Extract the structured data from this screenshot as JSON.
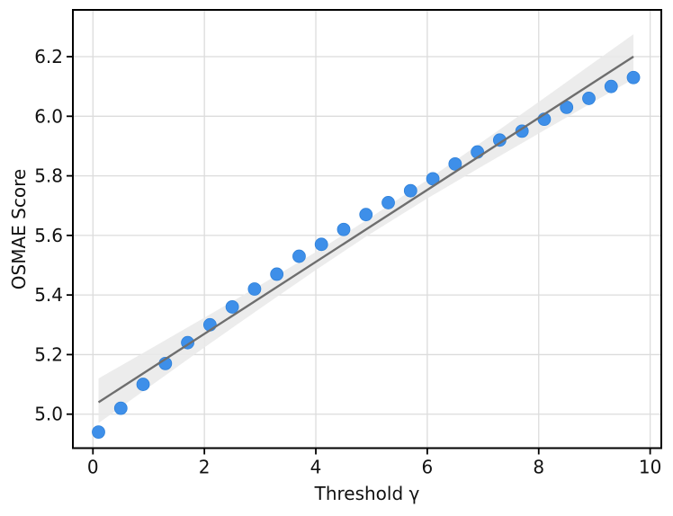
{
  "figure": {
    "background": "#FFFFFF"
  },
  "chart_data": {
    "type": "scatter",
    "title": "",
    "xlabel": "Threshold γ",
    "ylabel": "OSMAE Score",
    "xlim": [
      -0.36,
      10.2
    ],
    "ylim": [
      4.886,
      6.357
    ],
    "xticks": [
      0,
      2,
      4,
      6,
      8,
      10
    ],
    "yticks": [
      5.0,
      5.2,
      5.4,
      5.6,
      5.8,
      6.0,
      6.2
    ],
    "grid": true,
    "legend": "none",
    "colors": {
      "point": "#3E8FE9",
      "point_edge": "#2E80D9",
      "trend_line": "#6E6E6E",
      "band": "#E9E9E9",
      "grid": "#DCDCDC",
      "spine": "#000000",
      "text": "#111111"
    },
    "series": [
      {
        "name": "osmae-scores",
        "type": "scatter",
        "x": [
          0.1,
          0.5,
          0.9,
          1.3,
          1.7,
          2.1,
          2.5,
          2.9,
          3.3,
          3.7,
          4.1,
          4.5,
          4.9,
          5.3,
          5.7,
          6.1,
          6.5,
          6.9,
          7.3,
          7.7,
          8.1,
          8.5,
          8.9,
          9.3,
          9.7
        ],
        "y": [
          4.94,
          5.02,
          5.1,
          5.17,
          5.24,
          5.3,
          5.36,
          5.42,
          5.47,
          5.53,
          5.57,
          5.62,
          5.67,
          5.71,
          5.75,
          5.79,
          5.84,
          5.88,
          5.92,
          5.95,
          5.99,
          6.03,
          6.06,
          6.1,
          6.13
        ]
      },
      {
        "name": "linear-fit",
        "type": "line",
        "x": [
          0.1,
          9.7
        ],
        "y": [
          5.04,
          6.2
        ]
      },
      {
        "name": "confidence-band",
        "type": "band",
        "x": [
          0.1,
          1.0,
          2.0,
          3.0,
          4.0,
          4.9,
          6.0,
          7.0,
          8.0,
          9.0,
          9.7
        ],
        "upper": [
          5.12,
          5.216,
          5.324,
          5.433,
          5.544,
          5.65,
          5.786,
          5.916,
          6.048,
          6.182,
          6.275
        ],
        "lower": [
          4.97,
          5.09,
          5.224,
          5.355,
          5.484,
          5.596,
          5.724,
          5.834,
          5.942,
          6.05,
          6.125
        ]
      }
    ]
  }
}
